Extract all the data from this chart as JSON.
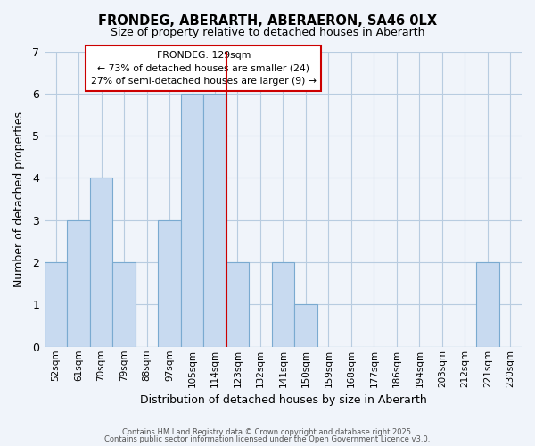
{
  "title": "FRONDEG, ABERARTH, ABERAERON, SA46 0LX",
  "subtitle": "Size of property relative to detached houses in Aberarth",
  "xlabel": "Distribution of detached houses by size in Aberarth",
  "ylabel": "Number of detached properties",
  "footer_line1": "Contains HM Land Registry data © Crown copyright and database right 2025.",
  "footer_line2": "Contains public sector information licensed under the Open Government Licence v3.0.",
  "bin_labels": [
    "52sqm",
    "61sqm",
    "70sqm",
    "79sqm",
    "88sqm",
    "97sqm",
    "105sqm",
    "114sqm",
    "123sqm",
    "132sqm",
    "141sqm",
    "150sqm",
    "159sqm",
    "168sqm",
    "177sqm",
    "186sqm",
    "194sqm",
    "203sqm",
    "212sqm",
    "221sqm",
    "230sqm"
  ],
  "bar_values": [
    2,
    3,
    4,
    2,
    0,
    3,
    6,
    6,
    2,
    0,
    2,
    1,
    0,
    0,
    0,
    0,
    0,
    0,
    0,
    2,
    0
  ],
  "bar_color": "#c8daf0",
  "bar_edge_color": "#7aaad0",
  "highlight_bar_index": 7,
  "highlight_line_color": "#cc0000",
  "ylim": [
    0,
    7
  ],
  "yticks": [
    0,
    1,
    2,
    3,
    4,
    5,
    6,
    7
  ],
  "annotation_title": "FRONDEG: 129sqm",
  "annotation_line1": "← 73% of detached houses are smaller (24)",
  "annotation_line2": "27% of semi-detached houses are larger (9) →",
  "annotation_box_color": "#ffffff",
  "annotation_box_edge": "#cc0000",
  "background_color": "#f0f4fa",
  "grid_color": "#b8cce0"
}
